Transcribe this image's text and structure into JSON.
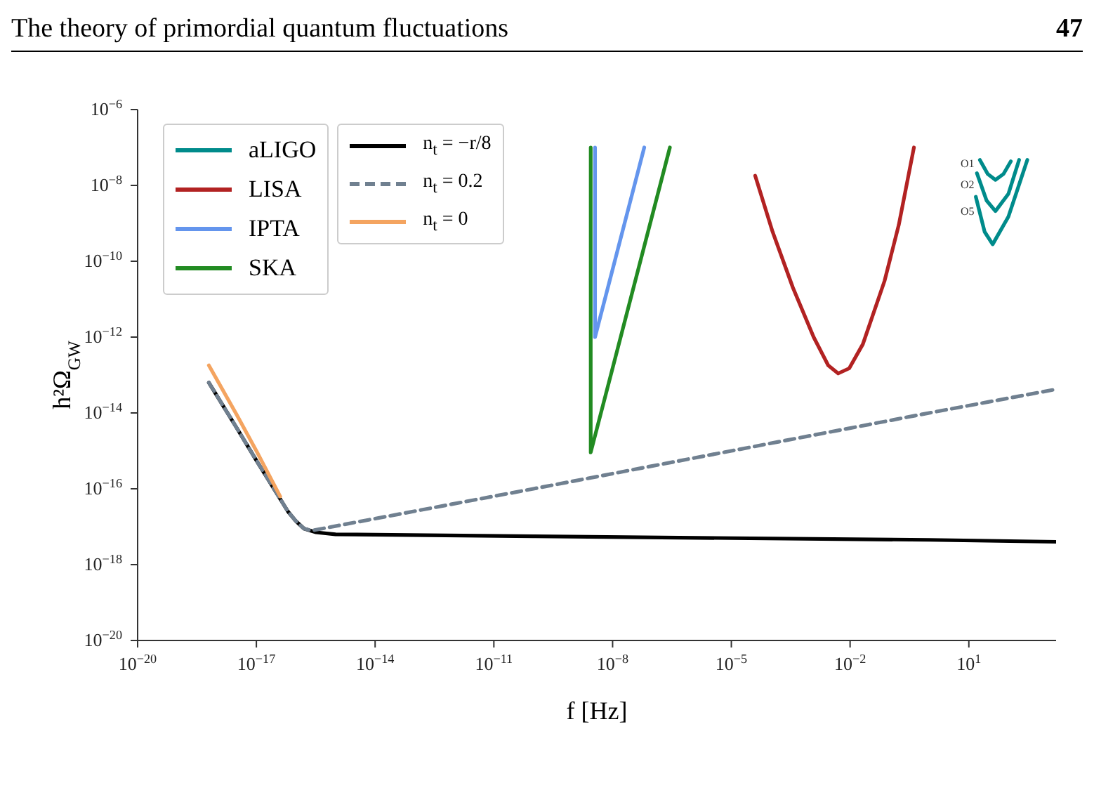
{
  "chart_data": {
    "type": "line",
    "title": "The theory of primordial quantum fluctuations",
    "xlabel": "f [Hz]",
    "ylabel": "h²Ω$_{GW}$",
    "annotations": [
      "47",
      "O1",
      "O2",
      "O5"
    ],
    "log": "xy",
    "grid": false,
    "legend": "top left",
    "xlim": [
      1e-20,
      1600.0
    ],
    "ylim": [
      1e-20,
      1e-06
    ],
    "xticks": [
      {
        "value": 1e-20,
        "label": "10$^{−20}$"
      },
      {
        "value": 1e-17,
        "label": "10$^{−17}$"
      },
      {
        "value": 1e-14,
        "label": "10$^{−14}$"
      },
      {
        "value": 1e-11,
        "label": "10$^{−11}$"
      },
      {
        "value": 1e-08,
        "label": "10$^{−8}$"
      },
      {
        "value": 1e-05,
        "label": "10$^{−5}$"
      },
      {
        "value": 0.01,
        "label": "10$^{−2}$"
      },
      {
        "value": 10,
        "label": "10$^{1}$"
      }
    ],
    "yticks": [
      {
        "value": 1e-20,
        "label": "10$^{−20}$"
      },
      {
        "value": 1e-18,
        "label": "10$^{−18}$"
      },
      {
        "value": 1e-16,
        "label": "10$^{−16}$"
      },
      {
        "value": 1e-14,
        "label": "10$^{−14}$"
      },
      {
        "value": 1e-12,
        "label": "10$^{−12}$"
      },
      {
        "value": 1e-10,
        "label": "10$^{−10}$"
      },
      {
        "value": 1e-08,
        "label": "10$^{−8}$"
      },
      {
        "value": 1e-06,
        "label": "10$^{−6}$"
      }
    ],
    "series": [
      {
        "name": "aLIGO",
        "color": "#008b8b",
        "x": [
          19,
          30,
          47,
          75,
          115
        ],
        "values": [
          4.7e-08,
          2e-08,
          1.4e-08,
          2e-08,
          4.3e-08
        ]
      },
      {
        "name": "LISA",
        "color": "#b22222",
        "x": [
          4e-05,
          0.00011,
          0.00036,
          0.0012,
          0.0028,
          0.005,
          0.0095,
          0.021,
          0.074,
          0.17,
          0.41
        ],
        "values": [
          1.8e-08,
          6e-10,
          2e-11,
          1e-12,
          1.8e-13,
          1.1e-13,
          1.5e-13,
          6.5e-13,
          3e-11,
          9.1e-10,
          1e-07
        ]
      },
      {
        "name": "IPTA",
        "color": "#6495ed",
        "x": [
          3.6e-09,
          3.6e-09,
          6.3e-08
        ],
        "values": [
          1e-07,
          1e-12,
          1e-07
        ]
      },
      {
        "name": "SKA",
        "color": "#228b22",
        "x": [
          2.8e-09,
          2.8e-09,
          2.8e-07
        ],
        "values": [
          1e-07,
          9.1e-16,
          1e-07
        ]
      },
      {
        "name": "n$_{t}$ = −r/8",
        "color": "#000000",
        "line_style": "solid",
        "x": [
          6.3e-19,
          3.2e-18,
          1e-17,
          3.2e-17,
          6.3e-17,
          1e-16,
          1.6e-16,
          3.2e-16,
          1e-15,
          1e-10,
          1e-05,
          1,
          1600.0
        ],
        "values": [
          6.3e-14,
          4e-15,
          5.6e-16,
          7.9e-17,
          2.5e-17,
          1.4e-17,
          8.9e-18,
          7.1e-18,
          6.3e-18,
          5.6e-18,
          5e-18,
          4.5e-18,
          4e-18
        ]
      },
      {
        "name": "n$_{t}$ = 0.2",
        "color": "#708090",
        "line_style": "dashed",
        "x": [
          6.3e-19,
          3.2e-18,
          1e-17,
          3.2e-17,
          6.3e-17,
          1e-16,
          1.6e-16,
          2.5e-16,
          1e-10,
          1e-05,
          1,
          1600.0
        ],
        "values": [
          6.3e-14,
          4e-15,
          5.6e-16,
          7.9e-17,
          2.5e-17,
          1.4e-17,
          8.9e-18,
          7.9e-18,
          1e-16,
          1e-15,
          1e-14,
          4.2e-14
        ]
      },
      {
        "name": "n$_{t}$ = 0",
        "color": "#f4a460",
        "line_style": "solid",
        "x": [
          6.3e-19,
          3.2e-18,
          1e-17,
          4e-17
        ],
        "values": [
          1.8e-13,
          8.9e-15,
          1e-15,
          6.3e-17
        ]
      },
      {
        "color": "#008b8b",
        "x": [
          16,
          28,
          47,
          100,
          186
        ],
        "values": [
          2.1e-08,
          4e-09,
          2.1e-09,
          6e-09,
          4.7e-08
        ]
      },
      {
        "color": "#008b8b",
        "x": [
          15,
          25,
          40,
          100,
          300
        ],
        "values": [
          5e-09,
          6e-10,
          2.8e-10,
          1.5e-09,
          4.7e-08
        ]
      }
    ]
  }
}
